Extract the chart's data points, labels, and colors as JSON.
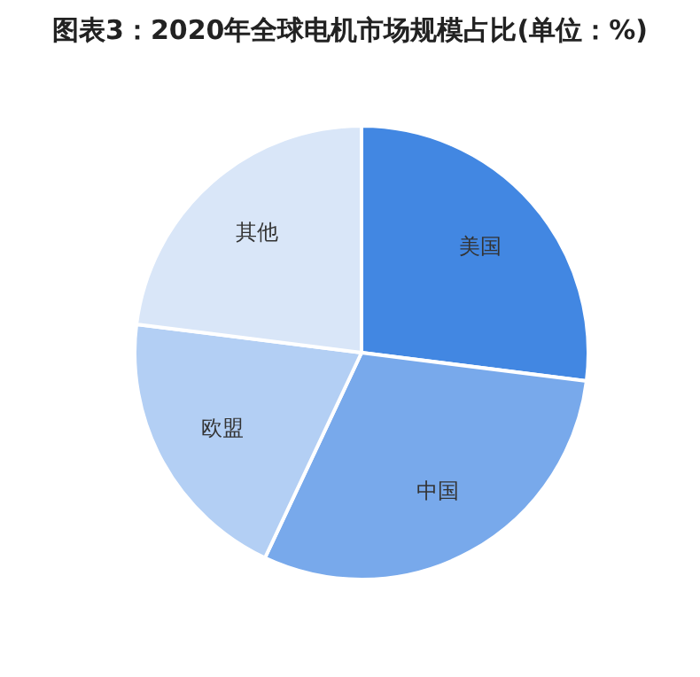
{
  "chart_data": {
    "type": "pie",
    "title": "图表3：2020年全球电机市场规模占比(单位：%)",
    "categories": [
      "美国",
      "中国",
      "欧盟",
      "其他"
    ],
    "values": [
      27,
      30,
      20,
      23
    ],
    "colors": [
      "#4287e2",
      "#78a9eb",
      "#b3cff4",
      "#d9e6f8"
    ],
    "legend": false
  }
}
